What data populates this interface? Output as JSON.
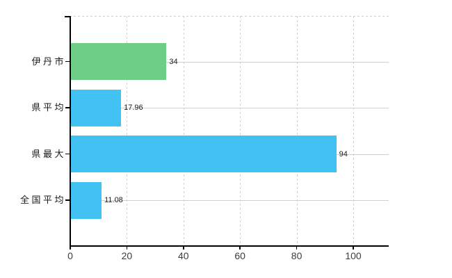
{
  "chart_data": {
    "type": "bar",
    "orientation": "horizontal",
    "title": "",
    "categories": [
      "伊丹市",
      "県平均",
      "県最大",
      "全国平均"
    ],
    "values": [
      34,
      17.96,
      94,
      11.08
    ],
    "value_labels": [
      "34",
      "17.96",
      "94",
      "11.08"
    ],
    "bar_colors": [
      "#6fce85",
      "#41c2f3",
      "#41c2f3",
      "#41c2f3"
    ],
    "x_ticks": [
      "0",
      "20",
      "40",
      "60",
      "80",
      "100"
    ],
    "x_tick_values": [
      0,
      20,
      40,
      60,
      80,
      100
    ],
    "xlim": [
      0,
      112.5
    ],
    "ylabel": "",
    "xlabel": "",
    "grid": true,
    "legend": "none"
  },
  "colors": {
    "highlight_bar": "#6fce85",
    "default_bar": "#41c2f3",
    "axis": "#000000",
    "grid_solid": "#cbd3c8",
    "grid_dashed": "#d1ced4",
    "label_text": "#1a1a1a",
    "tick_text": "#3c3c3c",
    "background": "#ffffff"
  }
}
